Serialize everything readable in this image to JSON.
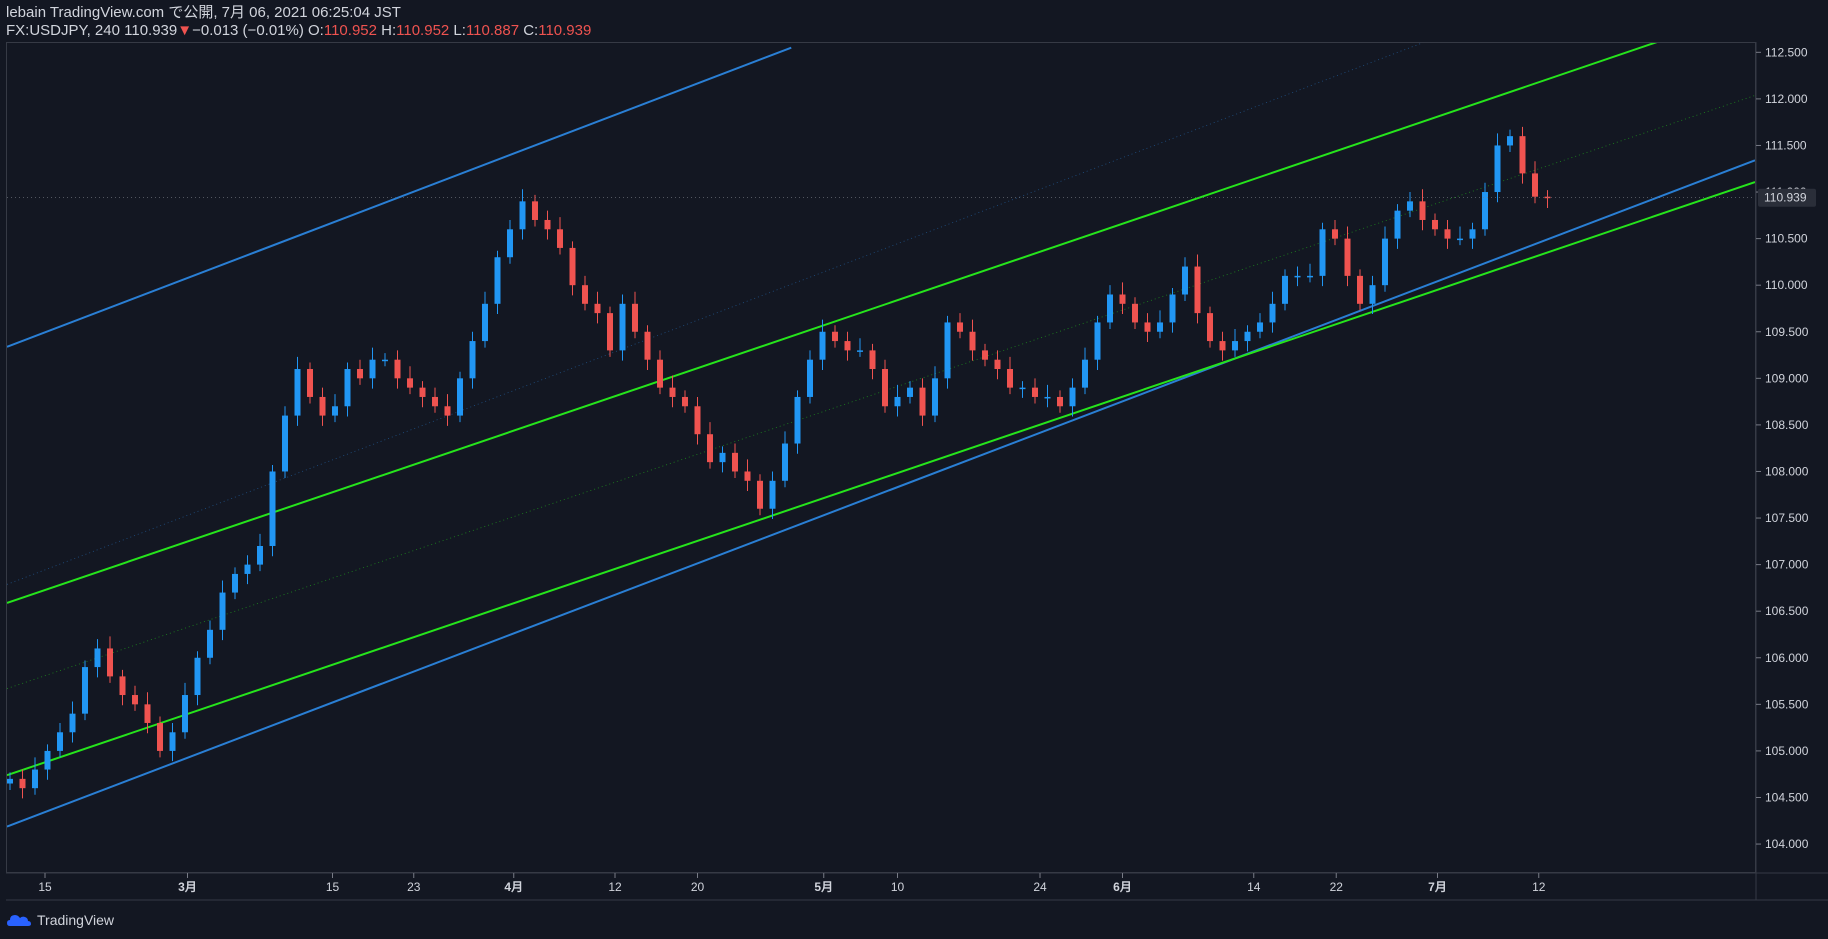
{
  "header": {
    "line1": "lebain TradingView.com で公開, 7月 06, 2021 06:25:04 JST",
    "symbol": "FX:USDJPY, 240",
    "last": "110.939",
    "change_arrow": "▼",
    "change": "−0.013 (−0.01%)",
    "o_label": "O:",
    "o_value": "110.952",
    "h_label": "H:",
    "h_value": "110.952",
    "l_label": "L:",
    "l_value": "110.887",
    "c_label": "C:",
    "c_value": "110.939"
  },
  "footer": {
    "logo_text": "TradingView"
  },
  "colors": {
    "background": "#131722",
    "up": "#2196f3",
    "down": "#ef5350",
    "channel_green": "#26e41c",
    "channel_blue": "#2a7fd4",
    "grid_border": "#363a45",
    "price_label_bg": "#2a2e39"
  },
  "chart_data": {
    "type": "candlestick",
    "ylim": [
      103.7,
      112.6
    ],
    "y_ticks": [
      "104.000",
      "104.500",
      "105.000",
      "105.500",
      "106.000",
      "106.500",
      "107.000",
      "107.500",
      "108.000",
      "108.500",
      "109.000",
      "109.500",
      "110.000",
      "110.500",
      "111.000",
      "111.500",
      "112.000",
      "112.500"
    ],
    "x_ticks": [
      {
        "label": "15",
        "idx": 2.8,
        "bold": false
      },
      {
        "label": "3月",
        "idx": 14.2,
        "bold": true
      },
      {
        "label": "15",
        "idx": 25.8,
        "bold": false
      },
      {
        "label": "23",
        "idx": 32.3,
        "bold": false
      },
      {
        "label": "4月",
        "idx": 40.3,
        "bold": true
      },
      {
        "label": "12",
        "idx": 48.4,
        "bold": false
      },
      {
        "label": "20",
        "idx": 55.0,
        "bold": false
      },
      {
        "label": "5月",
        "idx": 65.1,
        "bold": true
      },
      {
        "label": "10",
        "idx": 71.0,
        "bold": false
      },
      {
        "label": "24",
        "idx": 82.4,
        "bold": false
      },
      {
        "label": "6月",
        "idx": 89.0,
        "bold": true
      },
      {
        "label": "14",
        "idx": 99.5,
        "bold": false
      },
      {
        "label": "22",
        "idx": 106.1,
        "bold": false
      },
      {
        "label": "7月",
        "idx": 114.2,
        "bold": true
      },
      {
        "label": "12",
        "idx": 122.3,
        "bold": false
      }
    ],
    "last_price_label": "110.939",
    "last_price": 110.939,
    "closes": [
      104.7,
      104.6,
      104.8,
      105.0,
      105.2,
      105.4,
      105.9,
      106.1,
      105.8,
      105.6,
      105.5,
      105.3,
      105.0,
      105.2,
      105.6,
      106.0,
      106.3,
      106.7,
      106.9,
      107.0,
      107.2,
      108.0,
      108.6,
      109.1,
      108.8,
      108.6,
      108.7,
      109.1,
      109.0,
      109.2,
      109.2,
      109.0,
      108.9,
      108.8,
      108.7,
      108.6,
      109.0,
      109.4,
      109.8,
      110.3,
      110.6,
      110.9,
      110.7,
      110.6,
      110.4,
      110.0,
      109.8,
      109.7,
      109.3,
      109.8,
      109.5,
      109.2,
      108.9,
      108.8,
      108.7,
      108.4,
      108.1,
      108.2,
      108.0,
      107.9,
      107.6,
      107.9,
      108.3,
      108.8,
      109.2,
      109.5,
      109.4,
      109.3,
      109.3,
      109.1,
      108.7,
      108.8,
      108.9,
      108.6,
      109.0,
      109.6,
      109.5,
      109.3,
      109.2,
      109.1,
      108.9,
      108.9,
      108.8,
      108.8,
      108.7,
      108.9,
      109.2,
      109.6,
      109.9,
      109.8,
      109.6,
      109.5,
      109.6,
      109.9,
      110.2,
      109.7,
      109.4,
      109.3,
      109.4,
      109.5,
      109.6,
      109.8,
      110.1,
      110.1,
      110.1,
      110.6,
      110.5,
      110.1,
      109.8,
      110.0,
      110.5,
      110.8,
      110.9,
      110.7,
      110.6,
      110.5,
      110.5,
      110.6,
      111.0,
      111.5,
      111.6,
      111.2,
      110.95,
      110.939
    ],
    "channels": [
      {
        "name": "",
        "color": "blue",
        "style": "solid",
        "p1": {
          "idx": 0,
          "price": 109.35
        },
        "p2": {
          "idx": 62.5,
          "price": 112.55
        }
      },
      {
        "name": "",
        "color": "blue",
        "style": "solid",
        "p1": {
          "idx": 0,
          "price": 104.2
        },
        "p2": {
          "idx": 130,
          "price": 110.85
        }
      },
      {
        "name": "",
        "color": "green",
        "style": "solid",
        "p1": {
          "idx": 0,
          "price": 106.6
        },
        "p2": {
          "idx": 130,
          "price": 112.53
        }
      },
      {
        "name": "",
        "color": "green",
        "style": "solid",
        "p1": {
          "idx": 0,
          "price": 104.75
        },
        "p2": {
          "idx": 130,
          "price": 110.67
        }
      },
      {
        "name": "",
        "color": "green",
        "style": "dotted",
        "p1": {
          "idx": 0,
          "price": 105.68
        },
        "p2": {
          "idx": 130,
          "price": 111.6
        }
      },
      {
        "name": "",
        "color": "blue",
        "style": "dotted",
        "p1": {
          "idx": 0,
          "price": 106.8
        },
        "p2": {
          "idx": 112,
          "price": 112.55
        }
      }
    ]
  }
}
